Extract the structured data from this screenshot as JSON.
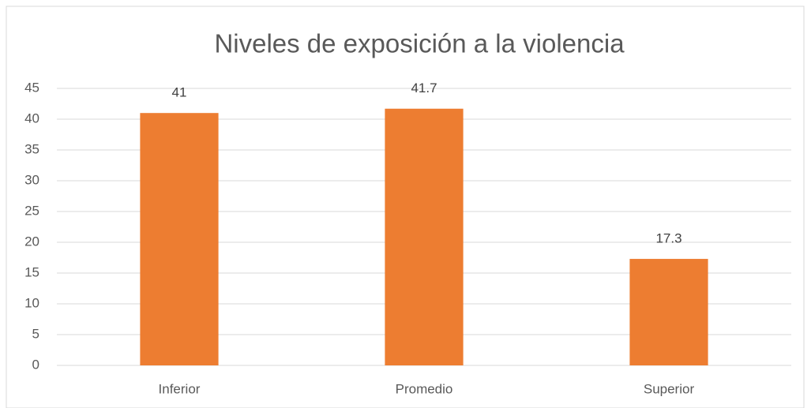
{
  "chart_data": {
    "type": "bar",
    "title": "Niveles de exposición a la violencia",
    "categories": [
      "Inferior",
      "Promedio",
      "Superior"
    ],
    "values": [
      41,
      41.7,
      17.3
    ],
    "color": "#ed7d31",
    "ylim": [
      0,
      45
    ],
    "yticks": [
      0,
      5,
      10,
      15,
      20,
      25,
      30,
      35,
      40,
      45
    ],
    "grid": true
  }
}
